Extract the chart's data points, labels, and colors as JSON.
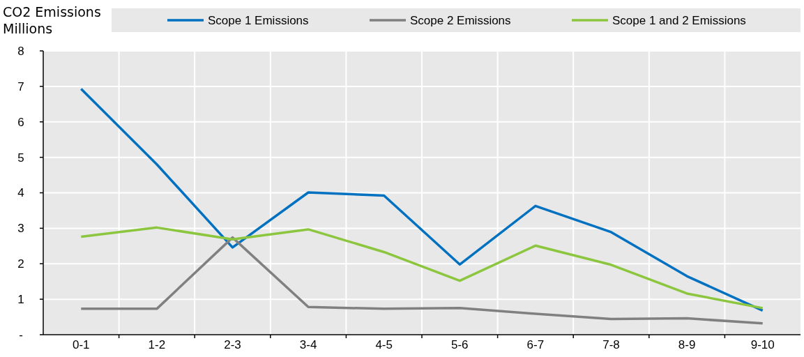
{
  "chart_data": {
    "type": "line",
    "ylabel": "CO2 Emissions\nMillions",
    "categories": [
      "0-1",
      "1-2",
      "2-3",
      "3-4",
      "4-5",
      "5-6",
      "6-7",
      "7-8",
      "8-9",
      "9-10"
    ],
    "series": [
      {
        "name": "Scope 1 Emissions",
        "color": "#0070c0",
        "values": [
          6.93,
          4.8,
          2.46,
          4.01,
          3.92,
          1.98,
          3.63,
          2.89,
          1.65,
          0.68
        ]
      },
      {
        "name": "Scope 2 Emissions",
        "color": "#808080",
        "values": [
          0.73,
          0.73,
          2.74,
          0.78,
          0.73,
          0.75,
          0.59,
          0.44,
          0.46,
          0.32
        ]
      },
      {
        "name": "Scope 1 and 2 Emissions",
        "color": "#8cc63f",
        "values": [
          2.76,
          3.02,
          2.69,
          2.97,
          2.33,
          1.52,
          2.51,
          1.97,
          1.16,
          0.75
        ]
      }
    ],
    "ylim": [
      0,
      8
    ],
    "yticks": [
      {
        "value": 0,
        "label": "-"
      },
      1,
      2,
      3,
      4,
      5,
      6,
      7,
      8
    ],
    "grid": true,
    "legend": "top",
    "marker": "none",
    "line_style": "solid"
  }
}
